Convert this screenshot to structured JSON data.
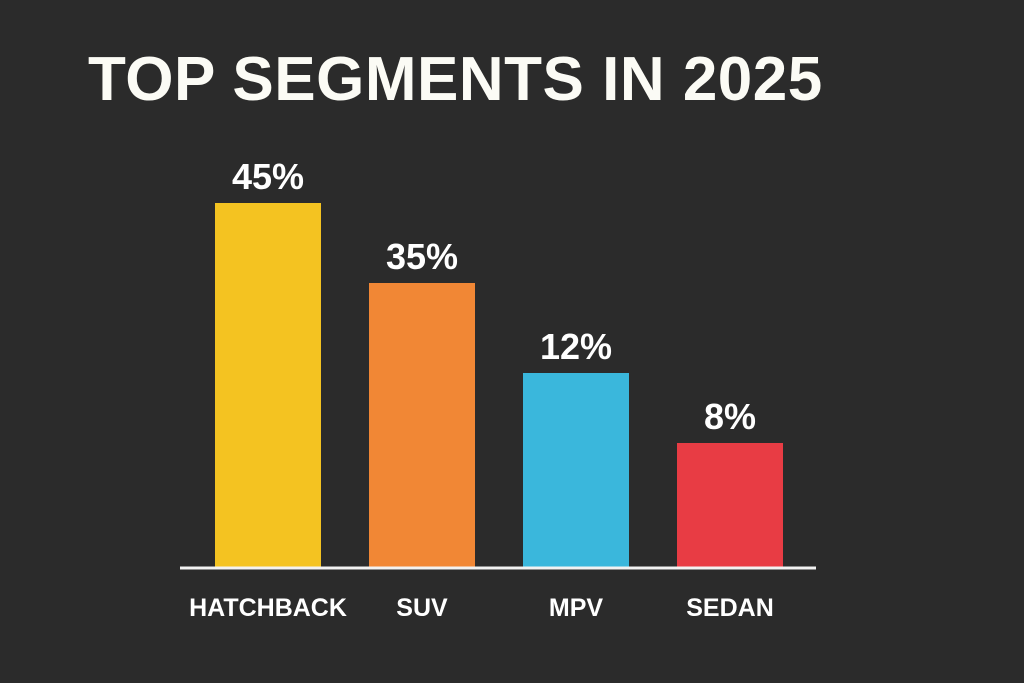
{
  "chart_data": {
    "type": "bar",
    "title": "TOP SEGMENTS IN 2025",
    "xlabel": "",
    "ylabel": "",
    "categories": [
      "HATCHBACK",
      "SUV",
      "MPV",
      "SEDAN"
    ],
    "values": [
      45,
      35,
      12,
      8
    ],
    "value_labels": [
      "45%",
      "35%",
      "12%",
      "8%"
    ],
    "colors": [
      "#f4c321",
      "#f18735",
      "#3ab7dc",
      "#e83c44"
    ],
    "unit": "%",
    "grid": false,
    "axes_visible": false,
    "legend": "none"
  }
}
